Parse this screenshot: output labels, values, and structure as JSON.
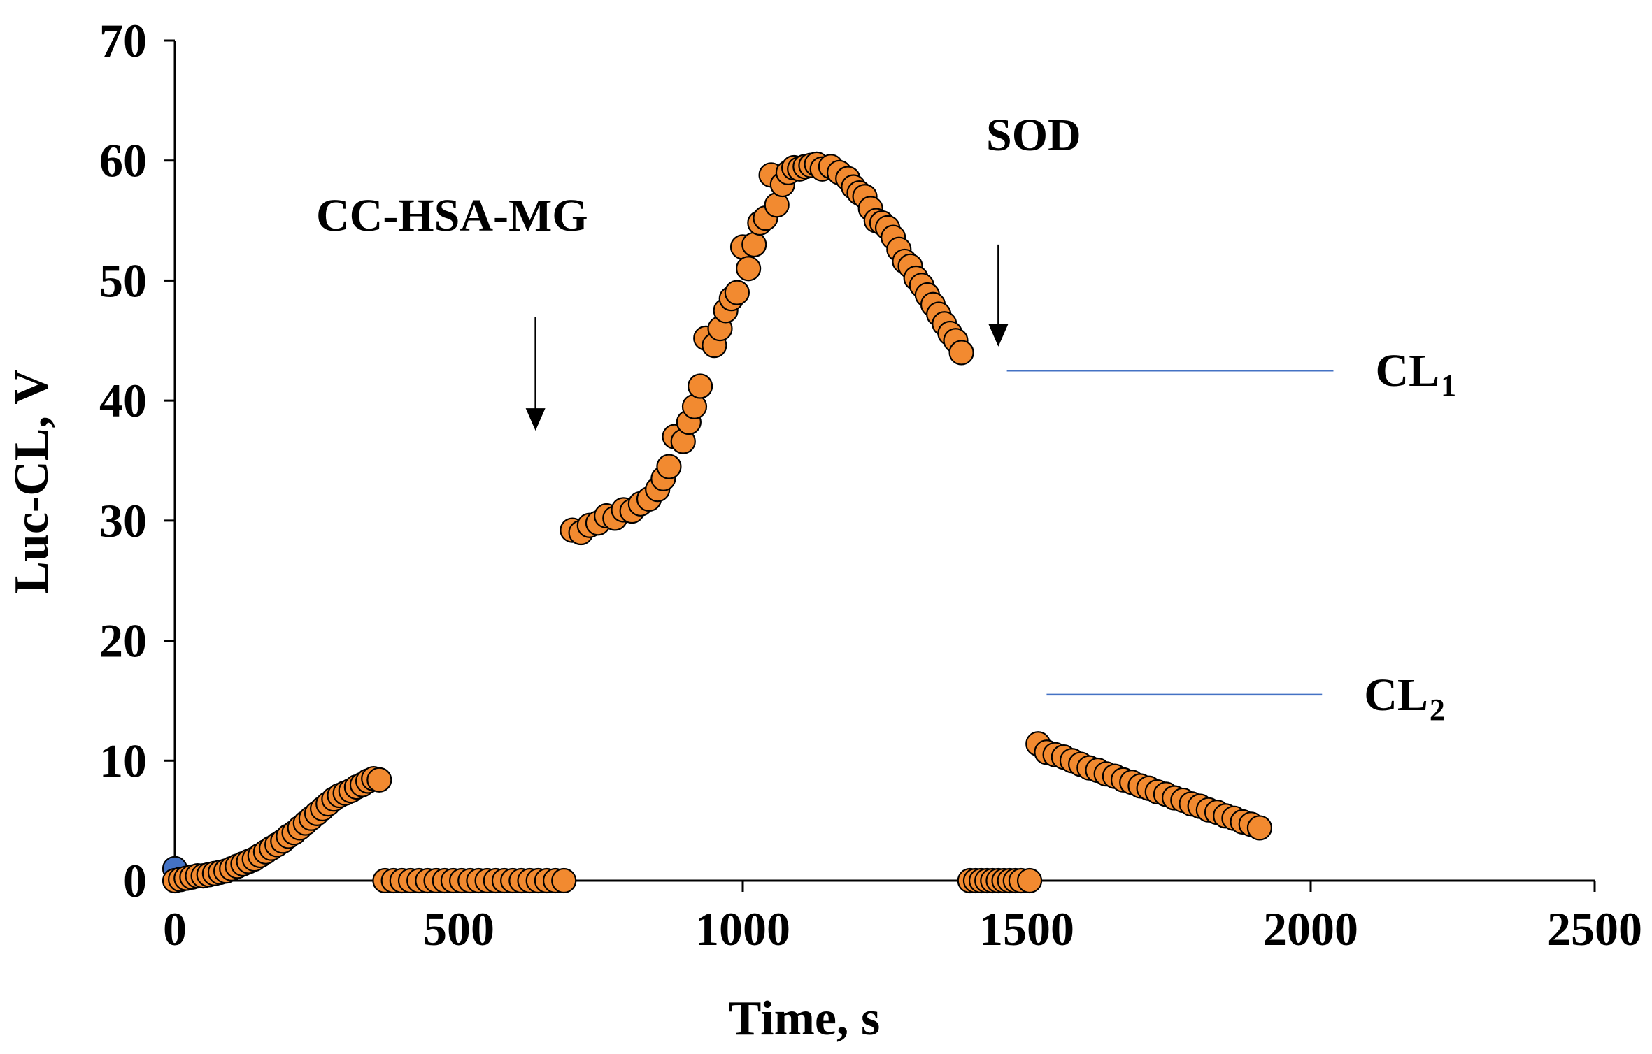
{
  "chart_data": {
    "type": "scatter",
    "title": "",
    "xlabel": "Time, s",
    "ylabel": "Luc-CL, V",
    "xlim": [
      0,
      2500
    ],
    "ylim": [
      0,
      70
    ],
    "xticks": [
      0,
      500,
      1000,
      1500,
      2000,
      2500
    ],
    "yticks": [
      0,
      10,
      20,
      30,
      40,
      50,
      60,
      70
    ],
    "grid": false,
    "colors": {
      "marker_fill": "#f28a30",
      "marker_edge": "#000000",
      "start_marker": "#4472c4",
      "level_line": "#4472c4",
      "axis": "#000000"
    },
    "annotations": [
      {
        "id": "cc-hsa-mg",
        "text": "CC-HSA-MG",
        "arrow_x": 635,
        "arrow_from_y": 47,
        "arrow_to_y": 37.5
      },
      {
        "id": "sod",
        "text": "SOD",
        "arrow_x": 1450,
        "arrow_from_y": 53,
        "arrow_to_y": 44.5
      }
    ],
    "level_lines": [
      {
        "label": "CL",
        "subscript": "1",
        "y": 42.5,
        "x_start": 1465,
        "x_end": 2040
      },
      {
        "label": "CL",
        "subscript": "2",
        "y": 15.5,
        "x_start": 1535,
        "x_end": 2020
      }
    ],
    "series": [
      {
        "name": "start",
        "color": "#4472c4",
        "points": [
          [
            0,
            1.0
          ]
        ]
      },
      {
        "name": "Luc-CL",
        "color": "#f28a30",
        "points": [
          [
            0,
            0
          ],
          [
            10,
            0.1
          ],
          [
            20,
            0.2
          ],
          [
            30,
            0.3
          ],
          [
            40,
            0.4
          ],
          [
            50,
            0.4
          ],
          [
            60,
            0.5
          ],
          [
            70,
            0.6
          ],
          [
            80,
            0.7
          ],
          [
            90,
            0.8
          ],
          [
            100,
            1.0
          ],
          [
            110,
            1.2
          ],
          [
            120,
            1.4
          ],
          [
            130,
            1.6
          ],
          [
            140,
            1.8
          ],
          [
            150,
            2.1
          ],
          [
            160,
            2.4
          ],
          [
            170,
            2.7
          ],
          [
            180,
            3.0
          ],
          [
            190,
            3.3
          ],
          [
            200,
            3.7
          ],
          [
            210,
            4.0
          ],
          [
            220,
            4.4
          ],
          [
            230,
            4.8
          ],
          [
            240,
            5.2
          ],
          [
            250,
            5.6
          ],
          [
            260,
            6.0
          ],
          [
            270,
            6.4
          ],
          [
            280,
            6.8
          ],
          [
            290,
            7.1
          ],
          [
            300,
            7.3
          ],
          [
            310,
            7.5
          ],
          [
            320,
            7.8
          ],
          [
            330,
            8.0
          ],
          [
            340,
            8.3
          ],
          [
            350,
            8.5
          ],
          [
            360,
            8.4
          ],
          [
            370,
            0
          ],
          [
            385,
            0
          ],
          [
            400,
            0
          ],
          [
            415,
            0
          ],
          [
            430,
            0
          ],
          [
            445,
            0
          ],
          [
            460,
            0
          ],
          [
            475,
            0
          ],
          [
            490,
            0
          ],
          [
            505,
            0
          ],
          [
            520,
            0
          ],
          [
            535,
            0
          ],
          [
            550,
            0
          ],
          [
            565,
            0
          ],
          [
            580,
            0
          ],
          [
            595,
            0
          ],
          [
            610,
            0
          ],
          [
            625,
            0
          ],
          [
            640,
            0
          ],
          [
            655,
            0
          ],
          [
            670,
            0
          ],
          [
            685,
            0
          ],
          [
            700,
            29.2
          ],
          [
            715,
            29.0
          ],
          [
            730,
            29.6
          ],
          [
            745,
            29.8
          ],
          [
            760,
            30.4
          ],
          [
            775,
            30.2
          ],
          [
            790,
            30.9
          ],
          [
            805,
            30.8
          ],
          [
            820,
            31.4
          ],
          [
            835,
            31.8
          ],
          [
            850,
            32.6
          ],
          [
            860,
            33.5
          ],
          [
            870,
            34.5
          ],
          [
            880,
            37.0
          ],
          [
            895,
            36.6
          ],
          [
            905,
            38.2
          ],
          [
            915,
            39.5
          ],
          [
            925,
            41.2
          ],
          [
            935,
            45.2
          ],
          [
            950,
            44.6
          ],
          [
            960,
            46.0
          ],
          [
            970,
            47.5
          ],
          [
            980,
            48.5
          ],
          [
            990,
            49.0
          ],
          [
            1000,
            52.8
          ],
          [
            1010,
            51.0
          ],
          [
            1020,
            53.0
          ],
          [
            1030,
            54.8
          ],
          [
            1040,
            55.2
          ],
          [
            1050,
            58.8
          ],
          [
            1060,
            56.3
          ],
          [
            1070,
            58.0
          ],
          [
            1080,
            59.0
          ],
          [
            1090,
            59.4
          ],
          [
            1100,
            59.3
          ],
          [
            1110,
            59.5
          ],
          [
            1120,
            59.6
          ],
          [
            1130,
            59.7
          ],
          [
            1140,
            59.3
          ],
          [
            1155,
            59.5
          ],
          [
            1170,
            59.0
          ],
          [
            1185,
            58.5
          ],
          [
            1195,
            57.8
          ],
          [
            1205,
            57.3
          ],
          [
            1215,
            57.0
          ],
          [
            1225,
            56.0
          ],
          [
            1235,
            55.0
          ],
          [
            1245,
            54.8
          ],
          [
            1255,
            54.4
          ],
          [
            1265,
            53.6
          ],
          [
            1275,
            52.6
          ],
          [
            1285,
            51.6
          ],
          [
            1295,
            51.2
          ],
          [
            1305,
            50.2
          ],
          [
            1315,
            49.6
          ],
          [
            1325,
            48.8
          ],
          [
            1335,
            48.0
          ],
          [
            1345,
            47.2
          ],
          [
            1355,
            46.4
          ],
          [
            1365,
            45.6
          ],
          [
            1375,
            45.0
          ],
          [
            1385,
            44.0
          ],
          [
            1400,
            0
          ],
          [
            1410,
            0
          ],
          [
            1420,
            0
          ],
          [
            1430,
            0
          ],
          [
            1440,
            0
          ],
          [
            1450,
            0
          ],
          [
            1460,
            0
          ],
          [
            1470,
            0
          ],
          [
            1480,
            0
          ],
          [
            1490,
            0
          ],
          [
            1505,
            0
          ],
          [
            1520,
            11.4
          ],
          [
            1535,
            10.7
          ],
          [
            1550,
            10.5
          ],
          [
            1565,
            10.3
          ],
          [
            1580,
            10.0
          ],
          [
            1595,
            9.7
          ],
          [
            1610,
            9.4
          ],
          [
            1625,
            9.2
          ],
          [
            1640,
            8.9
          ],
          [
            1655,
            8.7
          ],
          [
            1670,
            8.4
          ],
          [
            1685,
            8.2
          ],
          [
            1700,
            7.9
          ],
          [
            1715,
            7.7
          ],
          [
            1730,
            7.4
          ],
          [
            1745,
            7.2
          ],
          [
            1760,
            6.9
          ],
          [
            1775,
            6.7
          ],
          [
            1790,
            6.4
          ],
          [
            1805,
            6.2
          ],
          [
            1820,
            5.9
          ],
          [
            1835,
            5.7
          ],
          [
            1850,
            5.4
          ],
          [
            1865,
            5.2
          ],
          [
            1880,
            4.9
          ],
          [
            1895,
            4.7
          ],
          [
            1910,
            4.4
          ]
        ]
      }
    ]
  }
}
